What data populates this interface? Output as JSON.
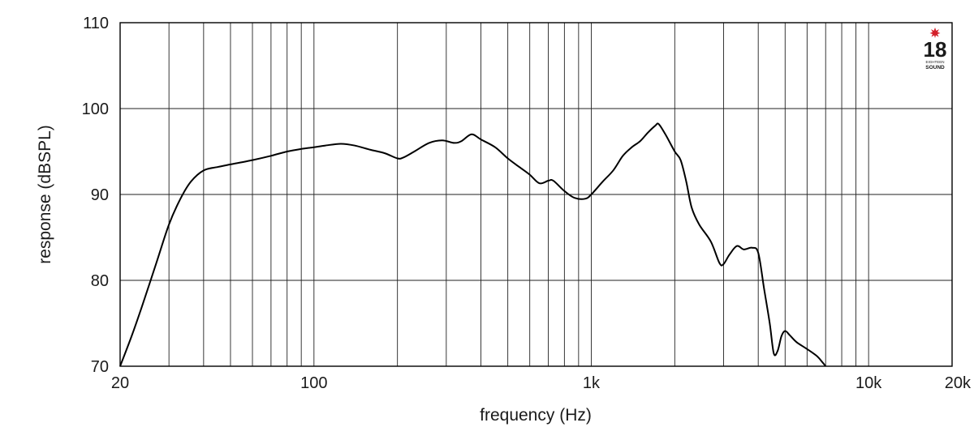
{
  "chart_data": {
    "type": "line",
    "xlabel": "frequency (Hz)",
    "ylabel": "response (dBSPL)",
    "x_scale": "log",
    "xlim": [
      20,
      20000
    ],
    "ylim": [
      70,
      110
    ],
    "grid": true,
    "x_ticks": [
      {
        "value": 20,
        "label": "20"
      },
      {
        "value": 100,
        "label": "100"
      },
      {
        "value": 1000,
        "label": "1k"
      },
      {
        "value": 10000,
        "label": "10k"
      },
      {
        "value": 20000,
        "label": "20k"
      }
    ],
    "x_gridlines": [
      30,
      40,
      50,
      60,
      70,
      80,
      90,
      100,
      200,
      300,
      400,
      500,
      600,
      700,
      800,
      900,
      1000,
      2000,
      3000,
      4000,
      5000,
      6000,
      7000,
      8000,
      9000,
      10000
    ],
    "y_ticks": [
      70,
      80,
      90,
      100,
      110
    ],
    "series": [
      {
        "color": "#000000",
        "points": [
          [
            20,
            70.0
          ],
          [
            22,
            73.5
          ],
          [
            24,
            77.0
          ],
          [
            27,
            82.0
          ],
          [
            30,
            86.5
          ],
          [
            33,
            89.5
          ],
          [
            36,
            91.5
          ],
          [
            40,
            92.8
          ],
          [
            45,
            93.2
          ],
          [
            50,
            93.5
          ],
          [
            60,
            94.0
          ],
          [
            70,
            94.5
          ],
          [
            80,
            95.0
          ],
          [
            90,
            95.3
          ],
          [
            100,
            95.5
          ],
          [
            110,
            95.7
          ],
          [
            125,
            95.9
          ],
          [
            140,
            95.7
          ],
          [
            160,
            95.2
          ],
          [
            180,
            94.8
          ],
          [
            200,
            94.2
          ],
          [
            210,
            94.3
          ],
          [
            230,
            95.0
          ],
          [
            260,
            96.0
          ],
          [
            290,
            96.3
          ],
          [
            320,
            96.0
          ],
          [
            340,
            96.2
          ],
          [
            370,
            97.0
          ],
          [
            400,
            96.4
          ],
          [
            450,
            95.5
          ],
          [
            500,
            94.2
          ],
          [
            550,
            93.2
          ],
          [
            600,
            92.3
          ],
          [
            650,
            91.3
          ],
          [
            700,
            91.6
          ],
          [
            730,
            91.6
          ],
          [
            800,
            90.4
          ],
          [
            870,
            89.6
          ],
          [
            950,
            89.5
          ],
          [
            1000,
            90.0
          ],
          [
            1100,
            91.5
          ],
          [
            1200,
            92.8
          ],
          [
            1300,
            94.5
          ],
          [
            1400,
            95.5
          ],
          [
            1500,
            96.2
          ],
          [
            1600,
            97.2
          ],
          [
            1700,
            98.0
          ],
          [
            1750,
            98.2
          ],
          [
            1850,
            97.0
          ],
          [
            2000,
            95.0
          ],
          [
            2100,
            94.0
          ],
          [
            2200,
            91.5
          ],
          [
            2300,
            88.5
          ],
          [
            2450,
            86.5
          ],
          [
            2700,
            84.5
          ],
          [
            2900,
            82.0
          ],
          [
            3000,
            81.9
          ],
          [
            3150,
            83.0
          ],
          [
            3350,
            84.0
          ],
          [
            3550,
            83.6
          ],
          [
            3800,
            83.8
          ],
          [
            4000,
            83.2
          ],
          [
            4200,
            79.0
          ],
          [
            4400,
            75.0
          ],
          [
            4550,
            71.5
          ],
          [
            4700,
            71.8
          ],
          [
            4850,
            73.5
          ],
          [
            5000,
            74.1
          ],
          [
            5200,
            73.6
          ],
          [
            5500,
            72.8
          ],
          [
            6000,
            72.0
          ],
          [
            6500,
            71.2
          ],
          [
            6800,
            70.5
          ],
          [
            7000,
            70.0
          ]
        ]
      }
    ]
  }
}
